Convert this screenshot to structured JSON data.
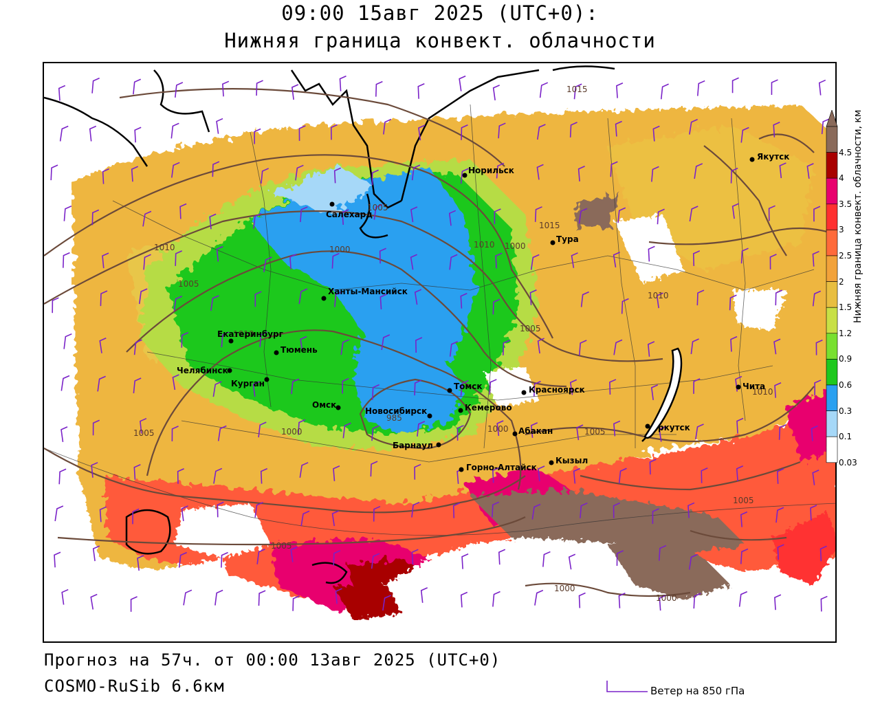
{
  "header": {
    "datetime": "09:00 15авг 2025 (UTC+0):",
    "parameter": "Нижняя граница конвект. облачности"
  },
  "footer": {
    "forecast": "Прогноз на 57ч. от 00:00 13авг 2025 (UTC+0)",
    "model": "COSMO-RuSib 6.6км",
    "wind_legend": "Ветер на 850 гПа"
  },
  "legend": {
    "title": "Нижняя граница конвект. облачности, км",
    "ticks": [
      "4.5",
      "4",
      "3.5",
      "3",
      "2.5",
      "2",
      "1.5",
      "1.2",
      "0.9",
      "0.6",
      "0.3",
      "0.1",
      "0.03"
    ],
    "colors": [
      "#8a6a5a",
      "#a80000",
      "#e8006e",
      "#ff3030",
      "#ff6a3a",
      "#f2a23a",
      "#e8be40",
      "#c8e046",
      "#78e030",
      "#1ec81e",
      "#2aa0f0",
      "#a6d8f8",
      "#ffffff"
    ],
    "colors_meaning": "band colors bottom-to-top follow the tick order reversed"
  },
  "cities": [
    {
      "name": "Норильск"
    },
    {
      "name": "Якутск"
    },
    {
      "name": "Салехард"
    },
    {
      "name": "Тура"
    },
    {
      "name": "Ханты-Мансийск"
    },
    {
      "name": "Екатеринбург"
    },
    {
      "name": "Тюмень"
    },
    {
      "name": "Челябинск"
    },
    {
      "name": "Курган"
    },
    {
      "name": "Омск"
    },
    {
      "name": "Новосибирск"
    },
    {
      "name": "Томск"
    },
    {
      "name": "Кемерово"
    },
    {
      "name": "Красноярск"
    },
    {
      "name": "Барнаул"
    },
    {
      "name": "Абакан"
    },
    {
      "name": "Горно-Алтайск"
    },
    {
      "name": "Кызыл"
    },
    {
      "name": "Иркутск"
    },
    {
      "name": "Чита"
    }
  ],
  "isobars": [
    "1015",
    "1005",
    "1000",
    "1010",
    "1005",
    "1010",
    "1010",
    "1005",
    "1015",
    "1010",
    "1000",
    "1005",
    "985",
    "1000",
    "1005",
    "1000",
    "1005",
    "1000",
    "1000",
    "1010",
    "1005"
  ]
}
